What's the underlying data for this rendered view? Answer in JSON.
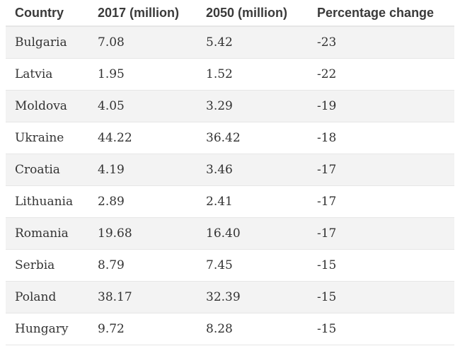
{
  "chart_data": {
    "type": "table",
    "columns": [
      "Country",
      "2017 (million)",
      "2050 (million)",
      "Percentage change"
    ],
    "rows": [
      [
        "Bulgaria",
        "7.08",
        "5.42",
        "-23"
      ],
      [
        "Latvia",
        "1.95",
        "1.52",
        "-22"
      ],
      [
        "Moldova",
        "4.05",
        "3.29",
        "-19"
      ],
      [
        "Ukraine",
        "44.22",
        "36.42",
        "-18"
      ],
      [
        "Croatia",
        "4.19",
        "3.46",
        "-17"
      ],
      [
        "Lithuania",
        "2.89",
        "2.41",
        "-17"
      ],
      [
        "Romania",
        "19.68",
        "16.40",
        "-17"
      ],
      [
        "Serbia",
        "8.79",
        "7.45",
        "-15"
      ],
      [
        "Poland",
        "38.17",
        "32.39",
        "-15"
      ],
      [
        "Hungary",
        "9.72",
        "8.28",
        "-15"
      ]
    ]
  }
}
